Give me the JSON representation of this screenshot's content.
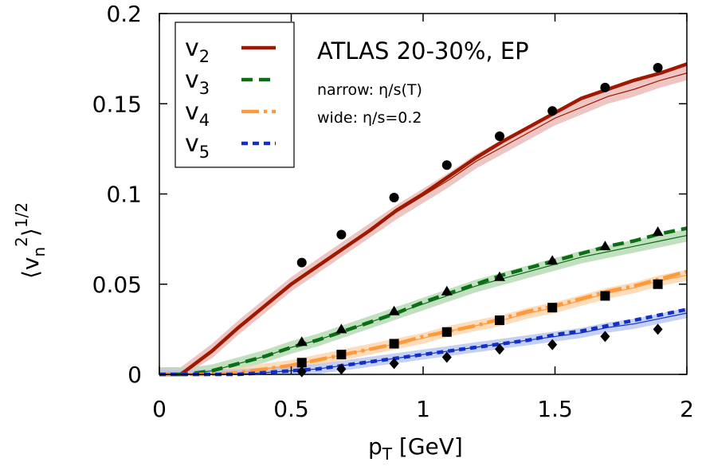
{
  "chart_data": {
    "type": "line",
    "xlabel": "p",
    "xlabel_sub": "T",
    "xlabel_unit": " [GeV]",
    "ylabel": "⟨v",
    "ylabel_sub": "n",
    "ylabel_sup": "2",
    "ylabel_close": "⟩",
    "ylabel_exp": "1/2",
    "xlim": [
      0,
      2
    ],
    "ylim": [
      0,
      0.2
    ],
    "xticks": [
      0,
      0.5,
      1,
      1.5,
      2
    ],
    "xtick_labels": [
      "0",
      "0.5",
      "1",
      "1.5",
      "2"
    ],
    "yticks": [
      0,
      0.05,
      0.1,
      0.15,
      0.2
    ],
    "ytick_labels": [
      "0",
      "0.05",
      "0.1",
      "0.15",
      "0.2"
    ],
    "legend_position": "top-left",
    "annotations": {
      "title": "ATLAS 20-30%, EP",
      "narrow": "narrow: η/s(T)",
      "wide": "wide: η/s=0.2"
    },
    "series": [
      {
        "name": "v",
        "sub": "2",
        "color": "#a01800",
        "dash": "",
        "marker": "circle",
        "band_color": "#e8b8b4",
        "curve_wide": {
          "x": [
            0,
            0.08,
            0.1,
            0.2,
            0.3,
            0.4,
            0.5,
            0.6,
            0.7,
            0.8,
            0.9,
            1.0,
            1.1,
            1.2,
            1.3,
            1.4,
            1.5,
            1.6,
            1.7,
            1.8,
            1.9,
            2.0
          ],
          "y": [
            0,
            0,
            0.002,
            0.013,
            0.026,
            0.038,
            0.05,
            0.06,
            0.07,
            0.08,
            0.091,
            0.1,
            0.11,
            0.12,
            0.129,
            0.137,
            0.145,
            0.153,
            0.158,
            0.163,
            0.167,
            0.172
          ]
        },
        "curve_narrow": {
          "x": [
            0,
            0.08,
            0.1,
            0.2,
            0.3,
            0.4,
            0.5,
            0.6,
            0.7,
            0.8,
            0.9,
            1.0,
            1.1,
            1.2,
            1.3,
            1.4,
            1.5,
            1.6,
            1.7,
            1.8,
            1.9,
            2.0
          ],
          "y": [
            0,
            0,
            0.002,
            0.013,
            0.026,
            0.038,
            0.05,
            0.06,
            0.07,
            0.08,
            0.09,
            0.099,
            0.108,
            0.118,
            0.126,
            0.134,
            0.142,
            0.148,
            0.154,
            0.158,
            0.163,
            0.167
          ]
        },
        "band_halfwidth": 0.004,
        "points": {
          "x": [
            0.54,
            0.69,
            0.89,
            1.09,
            1.29,
            1.49,
            1.69,
            1.89
          ],
          "y": [
            0.062,
            0.0775,
            0.098,
            0.116,
            0.132,
            0.146,
            0.159,
            0.17
          ]
        }
      },
      {
        "name": "v",
        "sub": "3",
        "color": "#0a6e14",
        "dash": "14,8",
        "marker": "triangle",
        "band_color": "#b0d8b0",
        "curve_wide": {
          "x": [
            0,
            0.1,
            0.2,
            0.3,
            0.4,
            0.5,
            0.6,
            0.7,
            0.8,
            0.9,
            1.0,
            1.1,
            1.2,
            1.3,
            1.4,
            1.5,
            1.6,
            1.7,
            1.8,
            1.9,
            2.0
          ],
          "y": [
            0,
            0,
            0.002,
            0.006,
            0.01,
            0.015,
            0.019,
            0.024,
            0.029,
            0.034,
            0.04,
            0.045,
            0.05,
            0.055,
            0.059,
            0.063,
            0.067,
            0.071,
            0.074,
            0.078,
            0.081
          ]
        },
        "curve_narrow": {
          "x": [
            0,
            0.1,
            0.2,
            0.3,
            0.4,
            0.5,
            0.6,
            0.7,
            0.8,
            0.9,
            1.0,
            1.1,
            1.2,
            1.3,
            1.4,
            1.5,
            1.6,
            1.7,
            1.8,
            1.9,
            2.0
          ],
          "y": [
            0,
            0,
            0.002,
            0.006,
            0.01,
            0.015,
            0.019,
            0.024,
            0.029,
            0.034,
            0.039,
            0.044,
            0.049,
            0.053,
            0.057,
            0.061,
            0.065,
            0.068,
            0.071,
            0.074,
            0.077
          ]
        },
        "band_halfwidth": 0.0035,
        "points": {
          "x": [
            0.54,
            0.69,
            0.89,
            1.09,
            1.29,
            1.49,
            1.69,
            1.89
          ],
          "y": [
            0.018,
            0.025,
            0.035,
            0.046,
            0.054,
            0.063,
            0.071,
            0.079
          ]
        }
      },
      {
        "name": "v",
        "sub": "4",
        "color": "#ff9a3c",
        "dash": "22,6,4,6",
        "marker": "square",
        "band_color": "#fcd3aa",
        "curve_wide": {
          "x": [
            0,
            0.2,
            0.3,
            0.4,
            0.5,
            0.6,
            0.7,
            0.8,
            0.9,
            1.0,
            1.1,
            1.2,
            1.3,
            1.4,
            1.5,
            1.6,
            1.7,
            1.8,
            1.9,
            2.0
          ],
          "y": [
            0,
            0,
            0.001,
            0.003,
            0.005,
            0.008,
            0.011,
            0.014,
            0.017,
            0.021,
            0.024,
            0.027,
            0.031,
            0.035,
            0.038,
            0.042,
            0.046,
            0.049,
            0.053,
            0.057
          ]
        },
        "curve_narrow": {
          "x": [
            0,
            0.2,
            0.3,
            0.4,
            0.5,
            0.6,
            0.7,
            0.8,
            0.9,
            1.0,
            1.1,
            1.2,
            1.3,
            1.4,
            1.5,
            1.6,
            1.7,
            1.8,
            1.9,
            2.0
          ],
          "y": [
            0,
            0,
            0.001,
            0.003,
            0.005,
            0.008,
            0.011,
            0.014,
            0.017,
            0.02,
            0.024,
            0.027,
            0.03,
            0.034,
            0.037,
            0.041,
            0.045,
            0.048,
            0.052,
            0.055
          ]
        },
        "band_halfwidth": 0.003,
        "points": {
          "x": [
            0.54,
            0.69,
            0.89,
            1.09,
            1.29,
            1.49,
            1.69,
            1.89
          ],
          "y": [
            0.0065,
            0.011,
            0.017,
            0.0235,
            0.03,
            0.037,
            0.0435,
            0.05
          ]
        }
      },
      {
        "name": "v",
        "sub": "5",
        "color": "#1030c8",
        "dash": "8,6",
        "marker": "diamond",
        "band_color": "#b8c4ec",
        "curve_wide": {
          "x": [
            0,
            0.3,
            0.4,
            0.5,
            0.6,
            0.7,
            0.8,
            0.9,
            1.0,
            1.1,
            1.2,
            1.3,
            1.4,
            1.5,
            1.6,
            1.7,
            1.8,
            1.9,
            2.0
          ],
          "y": [
            0,
            0,
            0.001,
            0.002,
            0.003,
            0.005,
            0.007,
            0.009,
            0.011,
            0.013,
            0.015,
            0.017,
            0.019,
            0.022,
            0.024,
            0.027,
            0.03,
            0.033,
            0.036
          ]
        },
        "curve_narrow": {
          "x": [
            0,
            0.3,
            0.4,
            0.5,
            0.6,
            0.7,
            0.8,
            0.9,
            1.0,
            1.1,
            1.2,
            1.3,
            1.4,
            1.5,
            1.6,
            1.7,
            1.8,
            1.9,
            2.0
          ],
          "y": [
            0,
            0,
            0.001,
            0.002,
            0.003,
            0.005,
            0.007,
            0.009,
            0.011,
            0.013,
            0.015,
            0.017,
            0.019,
            0.021,
            0.023,
            0.026,
            0.028,
            0.031,
            0.034
          ]
        },
        "band_halfwidth": 0.0028,
        "points": {
          "x": [
            0.54,
            0.69,
            0.89,
            1.09,
            1.29,
            1.49,
            1.69,
            1.89
          ],
          "y": [
            0.0015,
            0.003,
            0.006,
            0.0095,
            0.014,
            0.0165,
            0.021,
            0.025
          ]
        }
      }
    ]
  }
}
